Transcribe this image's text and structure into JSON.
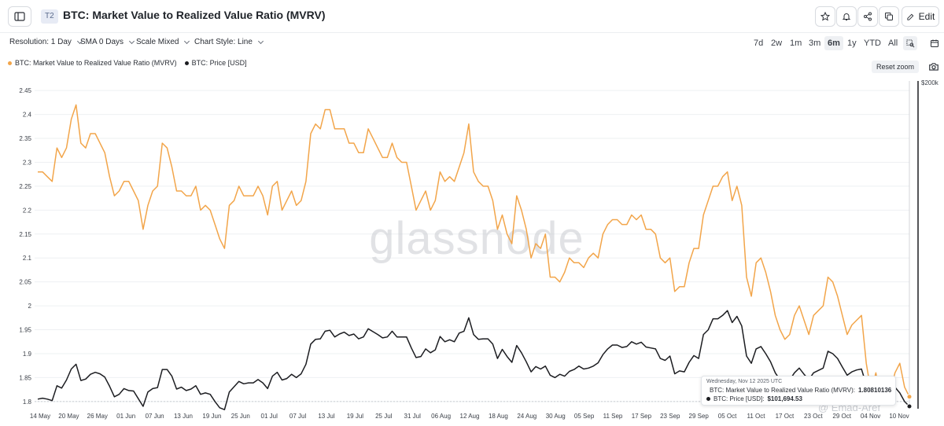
{
  "header": {
    "badge": "T2",
    "title": "BTC: Market Value to Realized Value Ratio (MVRV)",
    "edit_label": "Edit",
    "icons": [
      "sidebar-toggle-icon",
      "star-icon",
      "bell-icon",
      "share-icon",
      "copy-icon",
      "pencil-icon"
    ]
  },
  "toolbar": {
    "resolution": "Resolution: 1 Day",
    "sma": "SMA 0 Days",
    "scale": "Scale Mixed",
    "chart_style": "Chart Style: Line",
    "ranges": [
      "7d",
      "2w",
      "1m",
      "3m",
      "6m",
      "1y",
      "YTD",
      "All"
    ],
    "active_range": "6m"
  },
  "legend": {
    "mvrv": "BTC: Market Value to Realized Value Ratio (MVRV)",
    "price": "BTC: Price [USD]"
  },
  "reset_zoom": "Reset zoom",
  "watermark": "glassnode",
  "credit": "@ Emad-Aref",
  "tooltip": {
    "date": "Wednesday, Nov 12 2025 UTC",
    "mvrv_label": "BTC: Market Value to Realized Value Ratio (MVRV):",
    "mvrv_value": "1.80810136",
    "price_label": "BTC: Price [USD]:",
    "price_value": "$101,694.53"
  },
  "colors": {
    "mvrv": "#f2a54a",
    "price": "#1c1d21",
    "grid": "#eef0f2",
    "axis_text": "#3a3f47"
  },
  "chart_data": {
    "type": "line",
    "x_tick_labels": [
      "14 May",
      "20 May",
      "26 May",
      "01 Jun",
      "07 Jun",
      "13 Jun",
      "19 Jun",
      "25 Jun",
      "01 Jul",
      "07 Jul",
      "13 Jul",
      "19 Jul",
      "25 Jul",
      "31 Jul",
      "06 Aug",
      "12 Aug",
      "18 Aug",
      "24 Aug",
      "30 Aug",
      "05 Sep",
      "11 Sep",
      "17 Sep",
      "23 Sep",
      "29 Sep",
      "05 Oct",
      "11 Oct",
      "17 Oct",
      "23 Oct",
      "29 Oct",
      "04 Nov",
      "10 Nov"
    ],
    "y_left_ticks": [
      1.8,
      1.85,
      1.9,
      1.95,
      2,
      2.05,
      2.1,
      2.15,
      2.2,
      2.25,
      2.3,
      2.35,
      2.4,
      2.45
    ],
    "y_left_lim": [
      1.785,
      2.47
    ],
    "y_right_label": "$200k",
    "series": [
      {
        "name": "BTC: Market Value to Realized Value Ratio (MVRV)",
        "axis": "left",
        "values": [
          2.28,
          2.28,
          2.27,
          2.26,
          2.33,
          2.31,
          2.33,
          2.39,
          2.42,
          2.34,
          2.33,
          2.36,
          2.36,
          2.34,
          2.32,
          2.27,
          2.23,
          2.24,
          2.26,
          2.26,
          2.24,
          2.22,
          2.16,
          2.21,
          2.24,
          2.25,
          2.34,
          2.33,
          2.29,
          2.24,
          2.24,
          2.23,
          2.23,
          2.25,
          2.2,
          2.21,
          2.2,
          2.17,
          2.14,
          2.12,
          2.21,
          2.22,
          2.25,
          2.23,
          2.23,
          2.23,
          2.25,
          2.23,
          2.19,
          2.25,
          2.26,
          2.2,
          2.22,
          2.24,
          2.21,
          2.22,
          2.26,
          2.36,
          2.38,
          2.37,
          2.41,
          2.41,
          2.37,
          2.37,
          2.37,
          2.34,
          2.34,
          2.32,
          2.32,
          2.37,
          2.35,
          2.33,
          2.31,
          2.31,
          2.34,
          2.31,
          2.3,
          2.3,
          2.25,
          2.2,
          2.22,
          2.24,
          2.2,
          2.22,
          2.28,
          2.26,
          2.27,
          2.26,
          2.29,
          2.32,
          2.38,
          2.28,
          2.26,
          2.25,
          2.25,
          2.22,
          2.16,
          2.19,
          2.15,
          2.13,
          2.23,
          2.2,
          2.16,
          2.1,
          2.13,
          2.12,
          2.15,
          2.06,
          2.06,
          2.05,
          2.07,
          2.1,
          2.09,
          2.09,
          2.08,
          2.1,
          2.11,
          2.1,
          2.15,
          2.17,
          2.18,
          2.18,
          2.17,
          2.17,
          2.19,
          2.18,
          2.19,
          2.16,
          2.16,
          2.15,
          2.1,
          2.09,
          2.1,
          2.03,
          2.04,
          2.04,
          2.09,
          2.12,
          2.12,
          2.19,
          2.22,
          2.25,
          2.25,
          2.27,
          2.28,
          2.22,
          2.25,
          2.21,
          2.06,
          2.02,
          2.09,
          2.1,
          2.07,
          2.03,
          1.98,
          1.95,
          1.93,
          1.94,
          1.98,
          2.0,
          1.97,
          1.94,
          1.98,
          1.99,
          2.0,
          2.06,
          2.05,
          2.02,
          1.98,
          1.94,
          1.96,
          1.97,
          1.98,
          1.88,
          1.82,
          1.86,
          1.8,
          1.83,
          1.82,
          1.86,
          1.88,
          1.83,
          1.81
        ]
      },
      {
        "name": "BTC: Price [USD]",
        "axis": "right",
        "values": [
          1.805,
          1.807,
          1.805,
          1.802,
          1.833,
          1.828,
          1.845,
          1.868,
          1.878,
          1.844,
          1.847,
          1.857,
          1.861,
          1.858,
          1.851,
          1.832,
          1.81,
          1.815,
          1.827,
          1.823,
          1.822,
          1.806,
          1.79,
          1.82,
          1.827,
          1.829,
          1.867,
          1.867,
          1.853,
          1.826,
          1.83,
          1.823,
          1.826,
          1.833,
          1.815,
          1.818,
          1.815,
          1.8,
          1.787,
          1.783,
          1.82,
          1.831,
          1.842,
          1.837,
          1.839,
          1.839,
          1.846,
          1.839,
          1.827,
          1.853,
          1.861,
          1.845,
          1.848,
          1.857,
          1.85,
          1.858,
          1.878,
          1.92,
          1.93,
          1.931,
          1.947,
          1.949,
          1.935,
          1.941,
          1.945,
          1.938,
          1.941,
          1.931,
          1.935,
          1.952,
          1.946,
          1.94,
          1.933,
          1.935,
          1.947,
          1.935,
          1.935,
          1.935,
          1.912,
          1.892,
          1.894,
          1.91,
          1.902,
          1.908,
          1.936,
          1.925,
          1.929,
          1.925,
          1.943,
          1.947,
          1.975,
          1.94,
          1.93,
          1.931,
          1.931,
          1.92,
          1.89,
          1.909,
          1.894,
          1.882,
          1.917,
          1.902,
          1.883,
          1.862,
          1.873,
          1.868,
          1.874,
          1.855,
          1.85,
          1.857,
          1.853,
          1.863,
          1.867,
          1.874,
          1.868,
          1.87,
          1.874,
          1.881,
          1.898,
          1.91,
          1.918,
          1.918,
          1.913,
          1.915,
          1.925,
          1.92,
          1.924,
          1.914,
          1.912,
          1.91,
          1.89,
          1.886,
          1.895,
          1.858,
          1.864,
          1.862,
          1.882,
          1.896,
          1.89,
          1.94,
          1.95,
          1.973,
          1.973,
          1.98,
          1.99,
          1.965,
          1.978,
          1.958,
          1.895,
          1.88,
          1.91,
          1.915,
          1.9,
          1.883,
          1.86,
          1.845,
          1.837,
          1.845,
          1.86,
          1.87,
          1.857,
          1.846,
          1.86,
          1.865,
          1.87,
          1.905,
          1.9,
          1.89,
          1.872,
          1.855,
          1.862,
          1.866,
          1.868,
          1.835,
          1.812,
          1.83,
          1.805,
          1.815,
          1.81,
          1.83,
          1.818,
          1.8,
          1.79
        ]
      }
    ],
    "highlight": {
      "x": "12 Nov",
      "mvrv": 1.80810136,
      "price": 101694.53
    },
    "grid": true,
    "legend_position": "top-left"
  }
}
